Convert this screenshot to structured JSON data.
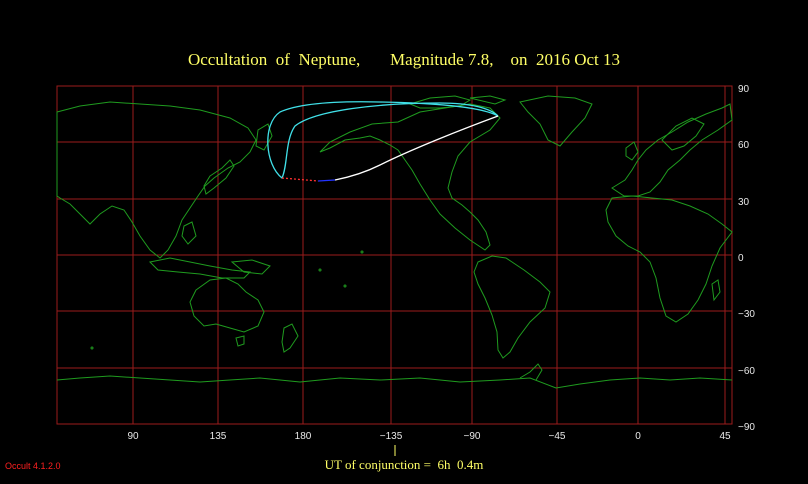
{
  "title": "Occultation  of  Neptune,       Magnitude 7.8,    on  2016 Oct 13",
  "longitude_ticks": [
    "90",
    "135",
    "180",
    "−135",
    "−90",
    "−45",
    "0",
    "45"
  ],
  "latitude_ticks": [
    "90",
    "60",
    "30",
    "0",
    "−30",
    "−60",
    "−90"
  ],
  "conjunction_label": "UT of conjunction =  6h  0.4m",
  "version": "Occult 4.1.2.0",
  "colors": {
    "title": "#ffff66",
    "grid": "#9b1c1c",
    "coast": "#1f9b1f",
    "path_outer": "#40e0e8",
    "path_day": "#ffffff",
    "path_blue": "#2233ff",
    "path_red": "#ff3030",
    "version": "#ff2020"
  }
}
